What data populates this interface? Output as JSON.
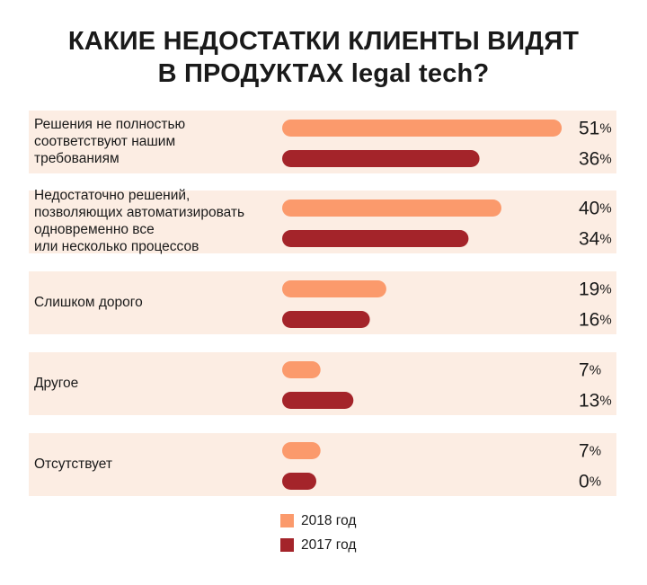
{
  "title_lines": [
    "КАКИЕ НЕДОСТАТКИ КЛИЕНТЫ ВИДЯТ",
    "В ПРОДУКТАХ legal tech?"
  ],
  "colors": {
    "row_background": "#fcede3",
    "series_2018": "#fb9a6c",
    "series_2017": "#a4242a"
  },
  "chart_data": {
    "type": "bar",
    "orientation": "horizontal",
    "title": "КАКИЕ НЕДОСТАТКИ КЛИЕНТЫ ВИДЯТ В ПРОДУКТАХ legal tech?",
    "unit": "%",
    "xlim": [
      0,
      51
    ],
    "categories": [
      "Решения не полностью соответствуют нашим требованиям",
      "Недостаточно решений, позволяющих автоматизировать одновременно все или несколько процессов",
      "Слишком дорого",
      "Другое",
      "Отсутствует"
    ],
    "category_lines": [
      [
        "Решения не полностью",
        "соответствуют нашим",
        "требованиям"
      ],
      [
        "Недостаточно решений,",
        "позволяющих автоматизировать",
        "одновременно все",
        "или несколько процессов"
      ],
      [
        "Слишком дорого"
      ],
      [
        "Другое"
      ],
      [
        "Отсутствует"
      ]
    ],
    "series": [
      {
        "name": "2018 год",
        "values": [
          51,
          40,
          19,
          7,
          7
        ]
      },
      {
        "name": "2017 год",
        "values": [
          36,
          34,
          16,
          13,
          0
        ]
      }
    ],
    "legend_position": "bottom-center"
  }
}
